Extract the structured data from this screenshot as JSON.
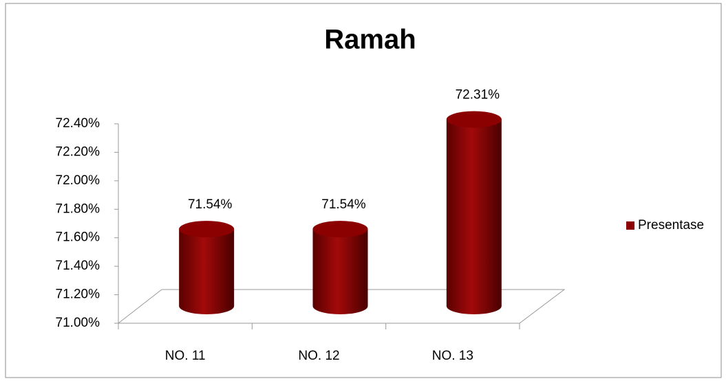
{
  "chart_data": {
    "type": "bar3d",
    "title": "Ramah",
    "categories": [
      "NO. 11",
      "NO. 12",
      "NO. 13"
    ],
    "series": [
      {
        "name": "Presentase",
        "color": "#8b0000",
        "values": [
          71.54,
          71.54,
          72.31
        ],
        "value_labels": [
          "71.54%",
          "71.54%",
          "72.31%"
        ]
      }
    ],
    "ylim": [
      71.0,
      72.4
    ],
    "yticks": [
      {
        "value": 71.0,
        "label": "71.00%"
      },
      {
        "value": 71.2,
        "label": "71.20%"
      },
      {
        "value": 71.4,
        "label": "71.40%"
      },
      {
        "value": 71.6,
        "label": "71.60%"
      },
      {
        "value": 71.8,
        "label": "71.80%"
      },
      {
        "value": 72.0,
        "label": "72.00%"
      },
      {
        "value": 72.2,
        "label": "72.20%"
      },
      {
        "value": 72.4,
        "label": "72.40%"
      }
    ],
    "grid": false,
    "legend": "right"
  }
}
